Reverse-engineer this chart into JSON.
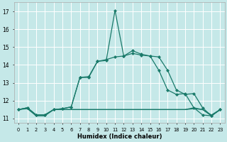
{
  "xlabel": "Humidex (Indice chaleur)",
  "background_color": "#c5e8e8",
  "grid_color": "#ffffff",
  "line_color": "#1a7a6a",
  "xlim": [
    -0.5,
    23.5
  ],
  "ylim": [
    10.75,
    17.5
  ],
  "x_ticks": [
    0,
    1,
    2,
    3,
    4,
    5,
    6,
    7,
    8,
    9,
    10,
    11,
    12,
    13,
    14,
    15,
    16,
    17,
    18,
    19,
    20,
    21,
    22,
    23
  ],
  "x_tick_labels": [
    "0",
    "1",
    "2",
    "3",
    "4",
    "5",
    "6",
    "7",
    "8",
    "9",
    "10",
    "11",
    "12",
    "13",
    "14",
    "15",
    "16",
    "17",
    "18",
    "19",
    "20",
    "21",
    "22",
    "23"
  ],
  "y_ticks": [
    11,
    12,
    13,
    14,
    15,
    16,
    17
  ],
  "series": [
    {
      "x": [
        0,
        1,
        2,
        3,
        4,
        5,
        6,
        7,
        8,
        9,
        10,
        11,
        12,
        13,
        14,
        15,
        16,
        17,
        18,
        19,
        20,
        21,
        22,
        23
      ],
      "y": [
        11.5,
        11.55,
        11.15,
        11.15,
        11.5,
        11.5,
        11.5,
        11.5,
        11.5,
        11.5,
        11.5,
        11.5,
        11.5,
        11.5,
        11.5,
        11.5,
        11.5,
        11.5,
        11.5,
        11.5,
        11.55,
        11.5,
        11.15,
        11.5
      ],
      "marker": null,
      "linewidth": 0.9
    },
    {
      "x": [
        0,
        1,
        2,
        3,
        4,
        5,
        6,
        7,
        8,
        9,
        10,
        11,
        12,
        13,
        14,
        15,
        16,
        17,
        18,
        19,
        20,
        21,
        22,
        23
      ],
      "y": [
        11.5,
        11.6,
        11.2,
        11.2,
        11.5,
        11.5,
        11.5,
        11.5,
        11.5,
        11.5,
        11.5,
        11.5,
        11.5,
        11.5,
        11.5,
        11.5,
        11.5,
        11.5,
        11.5,
        11.5,
        11.6,
        11.5,
        11.2,
        11.5
      ],
      "marker": null,
      "linewidth": 0.9
    },
    {
      "x": [
        0,
        1,
        2,
        3,
        4,
        5,
        6,
        7,
        8,
        9,
        10,
        11,
        12,
        13,
        14,
        15,
        16,
        17,
        18,
        19,
        20,
        21,
        22,
        23
      ],
      "y": [
        11.5,
        11.6,
        11.2,
        11.2,
        11.5,
        11.55,
        11.65,
        13.3,
        13.3,
        14.2,
        14.25,
        17.05,
        14.5,
        14.8,
        14.6,
        14.5,
        13.7,
        12.6,
        12.35,
        12.4,
        11.6,
        11.2,
        11.15,
        11.5
      ],
      "marker": "D",
      "linewidth": 0.9,
      "markersize": 2.0
    },
    {
      "x": [
        0,
        1,
        2,
        3,
        4,
        5,
        6,
        7,
        8,
        9,
        10,
        11,
        12,
        13,
        14,
        15,
        16,
        17,
        18,
        19,
        20,
        21,
        22,
        23
      ],
      "y": [
        11.5,
        11.6,
        11.2,
        11.2,
        11.5,
        11.55,
        11.65,
        13.3,
        13.35,
        14.2,
        14.3,
        14.45,
        14.5,
        14.65,
        14.55,
        14.5,
        14.45,
        13.7,
        12.6,
        12.35,
        12.4,
        11.6,
        11.15,
        11.5
      ],
      "marker": "D",
      "linewidth": 0.9,
      "markersize": 2.0
    }
  ]
}
